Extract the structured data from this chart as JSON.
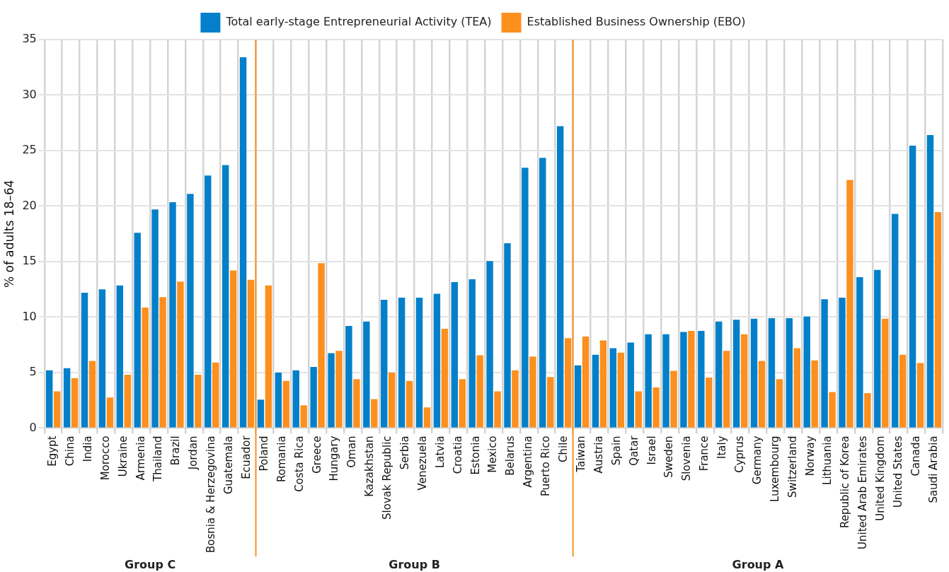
{
  "chart_data": {
    "type": "bar",
    "ylabel": "% of adults 18–64",
    "categories": [
      "Egypt",
      "China",
      "India",
      "Morocco",
      "Ukraine",
      "Armenia",
      "Thailand",
      "Brazil",
      "Jordan",
      "Bosnia & Herzegovina",
      "Guatemala",
      "Ecuador",
      "Poland",
      "Romania",
      "Costa Rica",
      "Greece",
      "Hungary",
      "Oman",
      "Kazakhstan",
      "Slovak Republic",
      "Serbia",
      "Venezuela",
      "Latvia",
      "Croatia",
      "Estonia",
      "Mexico",
      "Belarus",
      "Argentina",
      "Puerto Rico",
      "Chile",
      "Taiwan",
      "Austria",
      "Spain",
      "Qatar",
      "Israel",
      "Sweden",
      "Slovenia",
      "France",
      "Italy",
      "Cyprus",
      "Germany",
      "Luxembourg",
      "Switzerland",
      "Norway",
      "Lithuania",
      "Republic of Korea",
      "United Arab Emirates",
      "United Kingdom",
      "United States",
      "Canada",
      "Saudi Arabia"
    ],
    "series": [
      {
        "name": "Total early-stage Entrepreneurial Activity (TEA)",
        "color": "#0380c9",
        "values": [
          5.2,
          5.4,
          12.2,
          12.5,
          12.85,
          17.6,
          19.7,
          20.35,
          21.1,
          22.75,
          23.7,
          33.4,
          2.55,
          5.0,
          5.2,
          5.5,
          6.75,
          9.2,
          9.6,
          11.55,
          11.75,
          11.75,
          12.1,
          13.15,
          13.4,
          15.05,
          16.65,
          23.45,
          24.35,
          27.2,
          5.65,
          6.6,
          7.2,
          7.7,
          8.45,
          8.45,
          8.65,
          8.75,
          9.6,
          9.75,
          9.85,
          9.9,
          9.9,
          10.05,
          11.6,
          11.75,
          13.6,
          14.25,
          19.3,
          25.45,
          26.4
        ]
      },
      {
        "name": "Established Business Ownership (EBO)",
        "color": "#fc8f1e",
        "values": [
          3.3,
          4.5,
          6.05,
          2.75,
          4.8,
          10.85,
          11.8,
          13.2,
          4.8,
          5.9,
          14.2,
          13.35,
          12.85,
          4.25,
          2.05,
          14.85,
          6.95,
          4.4,
          2.6,
          5.0,
          4.25,
          1.85,
          8.95,
          4.4,
          6.55,
          3.3,
          5.2,
          6.45,
          4.6,
          8.1,
          8.25,
          7.9,
          6.8,
          3.3,
          3.65,
          5.15,
          8.75,
          4.55,
          6.95,
          8.45,
          6.05,
          4.4,
          7.2,
          6.1,
          3.25,
          22.35,
          3.15,
          9.85,
          6.6,
          5.85,
          19.45
        ]
      }
    ],
    "ylim": [
      0,
      35
    ],
    "yticks": [
      0,
      5,
      10,
      15,
      20,
      25,
      30,
      35
    ],
    "grid": true,
    "legend": "top",
    "annotations": [
      "Group C",
      "Group B",
      "Group A"
    ]
  }
}
